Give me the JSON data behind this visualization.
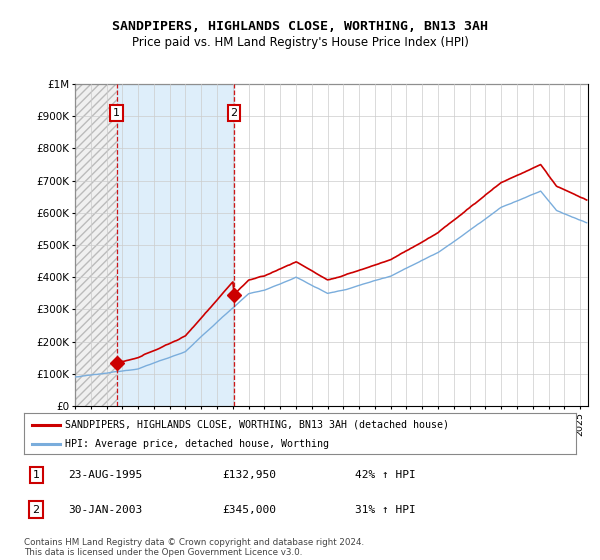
{
  "title": "SANDPIPERS, HIGHLANDS CLOSE, WORTHING, BN13 3AH",
  "subtitle": "Price paid vs. HM Land Registry's House Price Index (HPI)",
  "legend_line1": "SANDPIPERS, HIGHLANDS CLOSE, WORTHING, BN13 3AH (detached house)",
  "legend_line2": "HPI: Average price, detached house, Worthing",
  "purchase1_date": "23-AUG-1995",
  "purchase1_price": 132950,
  "purchase1_hpi": "42% ↑ HPI",
  "purchase2_date": "30-JAN-2003",
  "purchase2_price": 345000,
  "purchase2_hpi": "31% ↑ HPI",
  "footer": "Contains HM Land Registry data © Crown copyright and database right 2024.\nThis data is licensed under the Open Government Licence v3.0.",
  "xmin": 1993.0,
  "xmax": 2025.5,
  "ymin": 0,
  "ymax": 1000000,
  "hpi_color": "#7aaddc",
  "price_color": "#cc0000",
  "plot_bg": "#ffffff",
  "grid_color": "#cccccc",
  "purchase1_x": 1995.64,
  "purchase2_x": 2003.08,
  "hatch_end": 1995.64,
  "shade_end": 2003.08
}
